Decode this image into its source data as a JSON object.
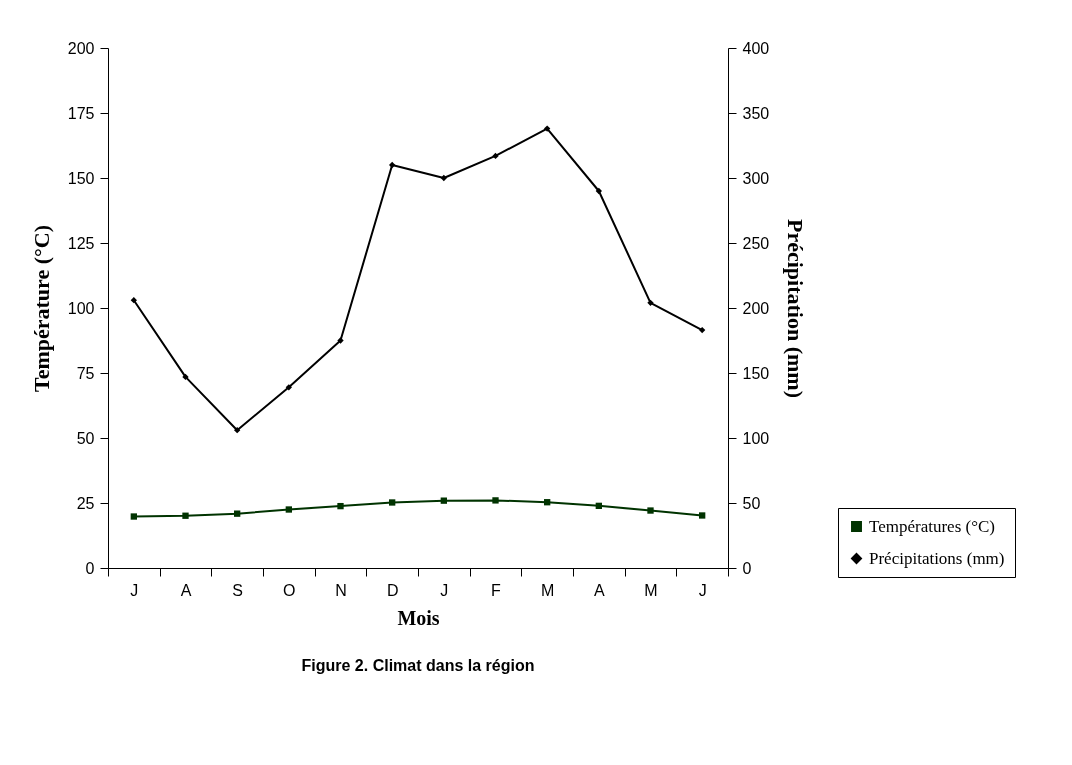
{
  "chart_data": {
    "type": "line",
    "title": "Figure 2. Climat dans la région",
    "xlabel": "Mois",
    "ylabel": "Température (°C)",
    "y2label": "Précipitation (mm)",
    "categories": [
      "J",
      "A",
      "S",
      "O",
      "N",
      "D",
      "J",
      "F",
      "M",
      "A",
      "M",
      "J"
    ],
    "ylim": [
      0,
      200
    ],
    "yticks": [
      0,
      25,
      50,
      75,
      100,
      125,
      150,
      175,
      200
    ],
    "y2lim": [
      0,
      400
    ],
    "y2ticks": [
      0,
      50,
      100,
      150,
      200,
      250,
      300,
      350,
      400
    ],
    "grid": false,
    "legend": "bottom right",
    "line_style": "solid",
    "series": [
      {
        "name": "Températures (°C)",
        "color": "#003300",
        "marker": "square",
        "values": [
          19.8,
          20.1,
          20.9,
          22.5,
          23.8,
          25.2,
          25.9,
          26.0,
          25.3,
          23.9,
          22.1,
          20.2
        ]
      },
      {
        "name": "Précipitations (mm)",
        "color": "#000000",
        "marker": "diamond",
        "axis": "y2",
        "values": [
          206,
          147,
          106,
          139,
          175,
          310,
          300,
          317,
          338,
          290,
          204,
          183
        ]
      }
    ]
  }
}
